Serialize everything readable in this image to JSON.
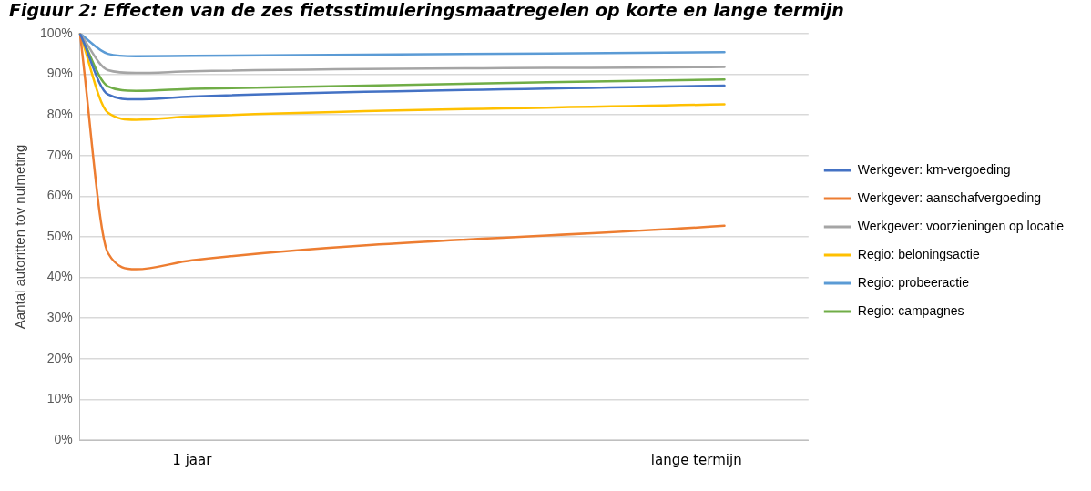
{
  "chart_data": {
    "type": "line",
    "title": "Figuur 2: Effecten van de zes fietsstimuleringsmaatregelen op korte en lange termijn",
    "ylabel": "Aantal autoritten tov nulmeting",
    "categories": [
      null,
      null,
      null,
      null,
      "1 jaar",
      null,
      null,
      null,
      null,
      null,
      null,
      null,
      null,
      null,
      null,
      null,
      null,
      null,
      null,
      null,
      null,
      null,
      "lange termijn",
      null,
      null,
      null,
      null
    ],
    "ylim": [
      0,
      100
    ],
    "yticks": [
      {
        "value": 0,
        "label": "0%"
      },
      {
        "value": 10,
        "label": "10%"
      },
      {
        "value": 20,
        "label": "20%"
      },
      {
        "value": 30,
        "label": "30%"
      },
      {
        "value": 40,
        "label": "40%"
      },
      {
        "value": 50,
        "label": "50%"
      },
      {
        "value": 60,
        "label": "60%"
      },
      {
        "value": 70,
        "label": "70%"
      },
      {
        "value": 80,
        "label": "80%"
      },
      {
        "value": 90,
        "label": "90%"
      },
      {
        "value": 100,
        "label": "100%"
      }
    ],
    "series": [
      {
        "name": "Werkgever: km-vergoeding",
        "color": "#4472c4",
        "values": [
          100,
          85,
          83.8,
          null,
          84.5,
          null,
          null,
          null,
          null,
          null,
          null,
          null,
          null,
          null,
          null,
          null,
          null,
          null,
          null,
          null,
          null,
          null,
          null,
          87.2,
          null,
          null,
          null
        ]
      },
      {
        "name": "Werkgever: aanschafvergoeding",
        "color": "#ed7d31",
        "values": [
          100,
          46,
          42,
          null,
          44.2,
          null,
          null,
          null,
          null,
          null,
          null,
          null,
          null,
          null,
          null,
          null,
          null,
          null,
          null,
          null,
          null,
          null,
          null,
          52.7,
          null,
          null,
          null
        ]
      },
      {
        "name": "Werkgever: voorzieningen op locatie",
        "color": "#a5a5a5",
        "values": [
          100,
          91,
          90.3,
          null,
          90.7,
          null,
          null,
          null,
          null,
          null,
          null,
          null,
          null,
          null,
          null,
          null,
          null,
          null,
          null,
          null,
          null,
          null,
          null,
          91.8,
          null,
          null,
          null
        ]
      },
      {
        "name": "Regio: beloningsactie",
        "color": "#ffc000",
        "values": [
          100,
          80.5,
          78.8,
          null,
          79.6,
          null,
          null,
          null,
          null,
          null,
          null,
          null,
          null,
          null,
          null,
          null,
          null,
          null,
          null,
          null,
          null,
          null,
          null,
          82.6,
          null,
          null,
          null
        ]
      },
      {
        "name": "Regio: probeeractie",
        "color": "#5b9bd5",
        "values": [
          100,
          95,
          94.4,
          null,
          94.5,
          null,
          null,
          null,
          null,
          null,
          null,
          null,
          null,
          null,
          null,
          null,
          null,
          null,
          null,
          null,
          null,
          null,
          null,
          95.4,
          null,
          null,
          null
        ]
      },
      {
        "name": "Regio: campagnes",
        "color": "#70ad47",
        "values": [
          100,
          87,
          85.9,
          null,
          86.4,
          null,
          null,
          null,
          null,
          null,
          null,
          null,
          null,
          null,
          null,
          null,
          null,
          null,
          null,
          null,
          null,
          null,
          null,
          88.7,
          null,
          null,
          null
        ]
      }
    ],
    "grid": "y",
    "legend": "right",
    "marker": "none",
    "line_style": "solid"
  }
}
